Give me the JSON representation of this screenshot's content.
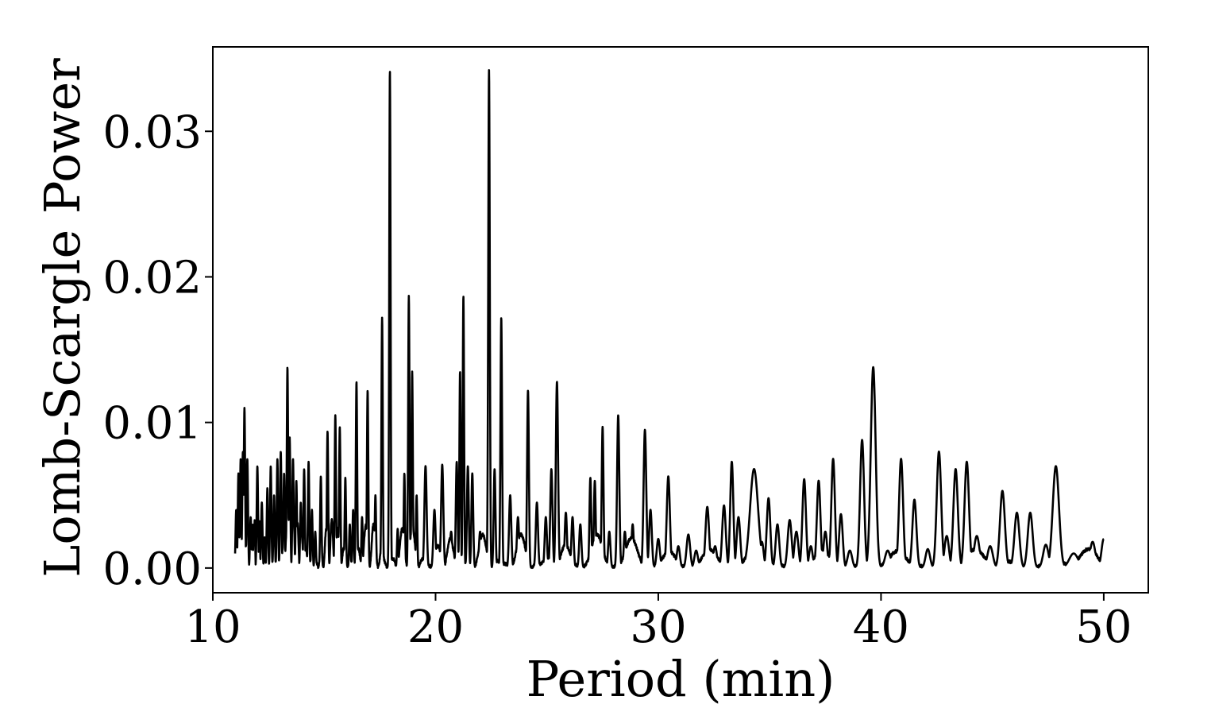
{
  "chart_data": {
    "type": "line",
    "title": "",
    "xlabel": "Period (min)",
    "ylabel": "Lomb-Scargle Power",
    "xlim": [
      10,
      52
    ],
    "ylim": [
      -0.0017,
      0.0358
    ],
    "xticks": [
      10,
      20,
      30,
      40,
      50
    ],
    "xtick_labels": [
      "10",
      "20",
      "30",
      "40",
      "50"
    ],
    "yticks": [
      0.0,
      0.01,
      0.02,
      0.03
    ],
    "ytick_labels": [
      "0.00",
      "0.01",
      "0.02",
      "0.03"
    ],
    "grid": false,
    "line_color": "#000000",
    "x_range": [
      11.0,
      50.0
    ],
    "peaks": [
      {
        "x": 11.05,
        "y": 0.004,
        "w": 0.03
      },
      {
        "x": 11.15,
        "y": 0.0065,
        "w": 0.03
      },
      {
        "x": 11.25,
        "y": 0.0075,
        "w": 0.03
      },
      {
        "x": 11.35,
        "y": 0.008,
        "w": 0.03
      },
      {
        "x": 11.42,
        "y": 0.011,
        "w": 0.03
      },
      {
        "x": 11.55,
        "y": 0.0075,
        "w": 0.03
      },
      {
        "x": 11.7,
        "y": 0.0035,
        "w": 0.03
      },
      {
        "x": 11.85,
        "y": 0.003,
        "w": 0.03
      },
      {
        "x": 12.0,
        "y": 0.007,
        "w": 0.03
      },
      {
        "x": 12.2,
        "y": 0.0045,
        "w": 0.03
      },
      {
        "x": 12.45,
        "y": 0.0055,
        "w": 0.03
      },
      {
        "x": 12.6,
        "y": 0.007,
        "w": 0.03
      },
      {
        "x": 12.75,
        "y": 0.005,
        "w": 0.03
      },
      {
        "x": 12.9,
        "y": 0.0075,
        "w": 0.03
      },
      {
        "x": 13.05,
        "y": 0.008,
        "w": 0.03
      },
      {
        "x": 13.2,
        "y": 0.0065,
        "w": 0.03
      },
      {
        "x": 13.35,
        "y": 0.0138,
        "w": 0.03
      },
      {
        "x": 13.45,
        "y": 0.009,
        "w": 0.03
      },
      {
        "x": 13.6,
        "y": 0.0075,
        "w": 0.03
      },
      {
        "x": 13.75,
        "y": 0.006,
        "w": 0.03
      },
      {
        "x": 13.95,
        "y": 0.0045,
        "w": 0.03
      },
      {
        "x": 14.1,
        "y": 0.0068,
        "w": 0.03
      },
      {
        "x": 14.3,
        "y": 0.0073,
        "w": 0.03
      },
      {
        "x": 14.45,
        "y": 0.004,
        "w": 0.03
      },
      {
        "x": 14.6,
        "y": 0.0025,
        "w": 0.03
      },
      {
        "x": 14.85,
        "y": 0.0063,
        "w": 0.03
      },
      {
        "x": 15.15,
        "y": 0.0094,
        "w": 0.03
      },
      {
        "x": 15.35,
        "y": 0.003,
        "w": 0.03
      },
      {
        "x": 15.5,
        "y": 0.0105,
        "w": 0.03
      },
      {
        "x": 15.7,
        "y": 0.0097,
        "w": 0.03
      },
      {
        "x": 15.95,
        "y": 0.0062,
        "w": 0.03
      },
      {
        "x": 16.15,
        "y": 0.003,
        "w": 0.03
      },
      {
        "x": 16.3,
        "y": 0.004,
        "w": 0.03
      },
      {
        "x": 16.45,
        "y": 0.0128,
        "w": 0.03
      },
      {
        "x": 16.7,
        "y": 0.0035,
        "w": 0.03
      },
      {
        "x": 16.95,
        "y": 0.0122,
        "w": 0.03
      },
      {
        "x": 17.3,
        "y": 0.005,
        "w": 0.03
      },
      {
        "x": 17.6,
        "y": 0.0172,
        "w": 0.03
      },
      {
        "x": 17.95,
        "y": 0.0342,
        "w": 0.03
      },
      {
        "x": 18.3,
        "y": 0.0027,
        "w": 0.03
      },
      {
        "x": 18.6,
        "y": 0.0065,
        "w": 0.03
      },
      {
        "x": 18.8,
        "y": 0.0187,
        "w": 0.03
      },
      {
        "x": 18.95,
        "y": 0.0135,
        "w": 0.03
      },
      {
        "x": 19.15,
        "y": 0.005,
        "w": 0.03
      },
      {
        "x": 19.55,
        "y": 0.007,
        "w": 0.05
      },
      {
        "x": 19.95,
        "y": 0.004,
        "w": 0.05
      },
      {
        "x": 20.3,
        "y": 0.0071,
        "w": 0.05
      },
      {
        "x": 20.7,
        "y": 0.0025,
        "w": 0.05
      },
      {
        "x": 20.95,
        "y": 0.0073,
        "w": 0.04
      },
      {
        "x": 21.1,
        "y": 0.0135,
        "w": 0.03
      },
      {
        "x": 21.25,
        "y": 0.0187,
        "w": 0.03
      },
      {
        "x": 21.45,
        "y": 0.007,
        "w": 0.04
      },
      {
        "x": 21.65,
        "y": 0.0065,
        "w": 0.04
      },
      {
        "x": 22.0,
        "y": 0.0025,
        "w": 0.05
      },
      {
        "x": 22.4,
        "y": 0.0342,
        "w": 0.035
      },
      {
        "x": 22.65,
        "y": 0.0068,
        "w": 0.04
      },
      {
        "x": 22.95,
        "y": 0.0172,
        "w": 0.035
      },
      {
        "x": 23.35,
        "y": 0.005,
        "w": 0.05
      },
      {
        "x": 23.7,
        "y": 0.0035,
        "w": 0.05
      },
      {
        "x": 24.15,
        "y": 0.0122,
        "w": 0.04
      },
      {
        "x": 24.55,
        "y": 0.0045,
        "w": 0.05
      },
      {
        "x": 24.95,
        "y": 0.0035,
        "w": 0.05
      },
      {
        "x": 25.2,
        "y": 0.0068,
        "w": 0.05
      },
      {
        "x": 25.45,
        "y": 0.0128,
        "w": 0.05
      },
      {
        "x": 25.85,
        "y": 0.0038,
        "w": 0.05
      },
      {
        "x": 26.15,
        "y": 0.0035,
        "w": 0.05
      },
      {
        "x": 26.5,
        "y": 0.003,
        "w": 0.05
      },
      {
        "x": 26.95,
        "y": 0.0062,
        "w": 0.04
      },
      {
        "x": 27.15,
        "y": 0.006,
        "w": 0.04
      },
      {
        "x": 27.5,
        "y": 0.0097,
        "w": 0.04
      },
      {
        "x": 27.8,
        "y": 0.0025,
        "w": 0.05
      },
      {
        "x": 28.2,
        "y": 0.0105,
        "w": 0.05
      },
      {
        "x": 28.5,
        "y": 0.0025,
        "w": 0.05
      },
      {
        "x": 28.85,
        "y": 0.003,
        "w": 0.05
      },
      {
        "x": 29.4,
        "y": 0.0095,
        "w": 0.06
      },
      {
        "x": 29.65,
        "y": 0.004,
        "w": 0.06
      },
      {
        "x": 30.0,
        "y": 0.002,
        "w": 0.07
      },
      {
        "x": 30.45,
        "y": 0.0063,
        "w": 0.07
      },
      {
        "x": 30.9,
        "y": 0.0015,
        "w": 0.07
      },
      {
        "x": 31.35,
        "y": 0.0023,
        "w": 0.08
      },
      {
        "x": 31.7,
        "y": 0.0012,
        "w": 0.08
      },
      {
        "x": 32.2,
        "y": 0.0042,
        "w": 0.08
      },
      {
        "x": 32.55,
        "y": 0.0015,
        "w": 0.08
      },
      {
        "x": 32.95,
        "y": 0.0043,
        "w": 0.08
      },
      {
        "x": 33.3,
        "y": 0.0073,
        "w": 0.07
      },
      {
        "x": 33.6,
        "y": 0.0035,
        "w": 0.08
      },
      {
        "x": 34.3,
        "y": 0.0068,
        "w": 0.18
      },
      {
        "x": 34.65,
        "y": 0.0018,
        "w": 0.08
      },
      {
        "x": 34.95,
        "y": 0.0048,
        "w": 0.08
      },
      {
        "x": 35.35,
        "y": 0.003,
        "w": 0.08
      },
      {
        "x": 35.9,
        "y": 0.0033,
        "w": 0.09
      },
      {
        "x": 36.2,
        "y": 0.0025,
        "w": 0.09
      },
      {
        "x": 36.55,
        "y": 0.0061,
        "w": 0.08
      },
      {
        "x": 36.85,
        "y": 0.0015,
        "w": 0.08
      },
      {
        "x": 37.2,
        "y": 0.006,
        "w": 0.08
      },
      {
        "x": 37.5,
        "y": 0.0025,
        "w": 0.08
      },
      {
        "x": 37.85,
        "y": 0.0075,
        "w": 0.08
      },
      {
        "x": 38.2,
        "y": 0.0037,
        "w": 0.08
      },
      {
        "x": 38.6,
        "y": 0.0012,
        "w": 0.1
      },
      {
        "x": 39.15,
        "y": 0.0088,
        "w": 0.09
      },
      {
        "x": 39.65,
        "y": 0.0138,
        "w": 0.11
      },
      {
        "x": 40.3,
        "y": 0.0012,
        "w": 0.12
      },
      {
        "x": 40.9,
        "y": 0.0075,
        "w": 0.09
      },
      {
        "x": 41.5,
        "y": 0.0047,
        "w": 0.09
      },
      {
        "x": 42.1,
        "y": 0.0013,
        "w": 0.1
      },
      {
        "x": 42.6,
        "y": 0.008,
        "w": 0.1
      },
      {
        "x": 42.95,
        "y": 0.0022,
        "w": 0.1
      },
      {
        "x": 43.35,
        "y": 0.0068,
        "w": 0.1
      },
      {
        "x": 43.85,
        "y": 0.0073,
        "w": 0.1
      },
      {
        "x": 44.3,
        "y": 0.0022,
        "w": 0.12
      },
      {
        "x": 44.9,
        "y": 0.0015,
        "w": 0.12
      },
      {
        "x": 45.45,
        "y": 0.0053,
        "w": 0.11
      },
      {
        "x": 46.1,
        "y": 0.0038,
        "w": 0.11
      },
      {
        "x": 46.7,
        "y": 0.0038,
        "w": 0.11
      },
      {
        "x": 47.4,
        "y": 0.0016,
        "w": 0.12
      },
      {
        "x": 47.85,
        "y": 0.007,
        "w": 0.14
      },
      {
        "x": 48.65,
        "y": 0.001,
        "w": 0.2
      },
      {
        "x": 49.5,
        "y": 0.0018,
        "w": 0.12
      },
      {
        "x": 50.0,
        "y": 0.002,
        "w": 0.1
      }
    ]
  }
}
